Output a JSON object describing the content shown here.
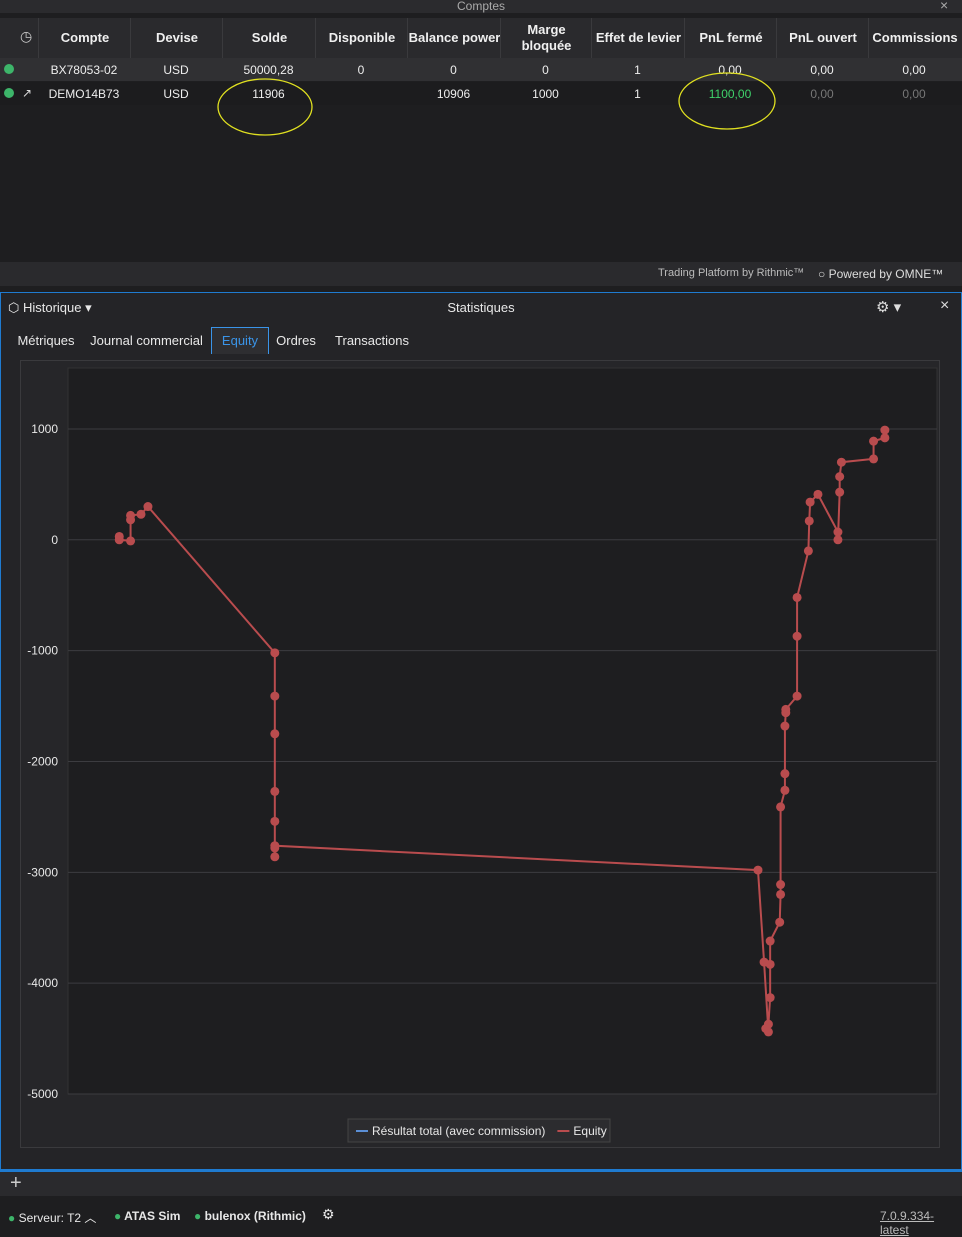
{
  "accounts": {
    "title": "Comptes",
    "columns": [
      "Compte",
      "Devise",
      "Solde",
      "Disponible",
      "Balance power",
      "Marge bloquée",
      "Effet de levier",
      "PnL fermé",
      "PnL ouvert",
      "Commissions"
    ],
    "rows": [
      [
        "BX78053-02",
        "USD",
        "50000,28",
        "0",
        "0",
        "0",
        "1",
        "0,00",
        "0,00",
        "0,00"
      ],
      [
        "DEMO14B73",
        "USD",
        "11906",
        null,
        "10906",
        "1000",
        "1",
        "1100,00",
        "0,00",
        "0,00"
      ]
    ],
    "footer": {
      "rithmic": "Trading Platform by Rithmic™",
      "omne": "Powered by OMNE™"
    }
  },
  "statistics": {
    "title": "Statistiques",
    "dropdown": "Historique",
    "tabs": [
      "Métriques",
      "Journal commercial",
      "Equity",
      "Ordres",
      "Transactions"
    ],
    "active_tab": 2
  },
  "chart_data": {
    "type": "line",
    "x": [
      5.9,
      5.9,
      7.2,
      7.2,
      7.2,
      8.4,
      9.2,
      23.8,
      23.8,
      23.8,
      23.8,
      23.8,
      23.8,
      23.8,
      23.8,
      79.4,
      80.1,
      80.6,
      80.3,
      80.6,
      80.8,
      80.8,
      80.8,
      81.9,
      82.0,
      82.0,
      82.0,
      82.5,
      82.5,
      82.5,
      82.6,
      82.6,
      83.9,
      83.9,
      83.9,
      85.2,
      85.3,
      85.4,
      86.3,
      88.6,
      88.6,
      88.8,
      88.8,
      89.0,
      92.7,
      92.7,
      94.0,
      94.0
    ],
    "xlim": [
      0,
      100
    ],
    "series": [
      {
        "name": "Résultat total (avec commission)",
        "color": "#5b8fd6"
      },
      {
        "name": "Equity",
        "color": "#b94c4e",
        "values": [
          30,
          0,
          -10,
          180,
          220,
          230,
          300,
          -1020,
          -1410,
          -1750,
          -2270,
          -2540,
          -2780,
          -2860,
          -2760,
          -2980,
          -3810,
          -4440,
          -4410,
          -4370,
          -4130,
          -3830,
          -3620,
          -3450,
          -3200,
          -3110,
          -2410,
          -2260,
          -2110,
          -1680,
          -1560,
          -1530,
          -1410,
          -870,
          -520,
          -100,
          170,
          340,
          410,
          70,
          0,
          430,
          570,
          700,
          730,
          890,
          920,
          990
        ]
      }
    ],
    "ylim": [
      -5000,
      1550
    ],
    "yticks": [
      -5000,
      -4000,
      -3000,
      -2000,
      -1000,
      0,
      1000
    ],
    "grid": true
  },
  "status": {
    "server": "Serveur: T2",
    "connections": [
      "ATAS Sim",
      "bulenox (Rithmic)"
    ],
    "version": "7.0.9.334-latest"
  }
}
